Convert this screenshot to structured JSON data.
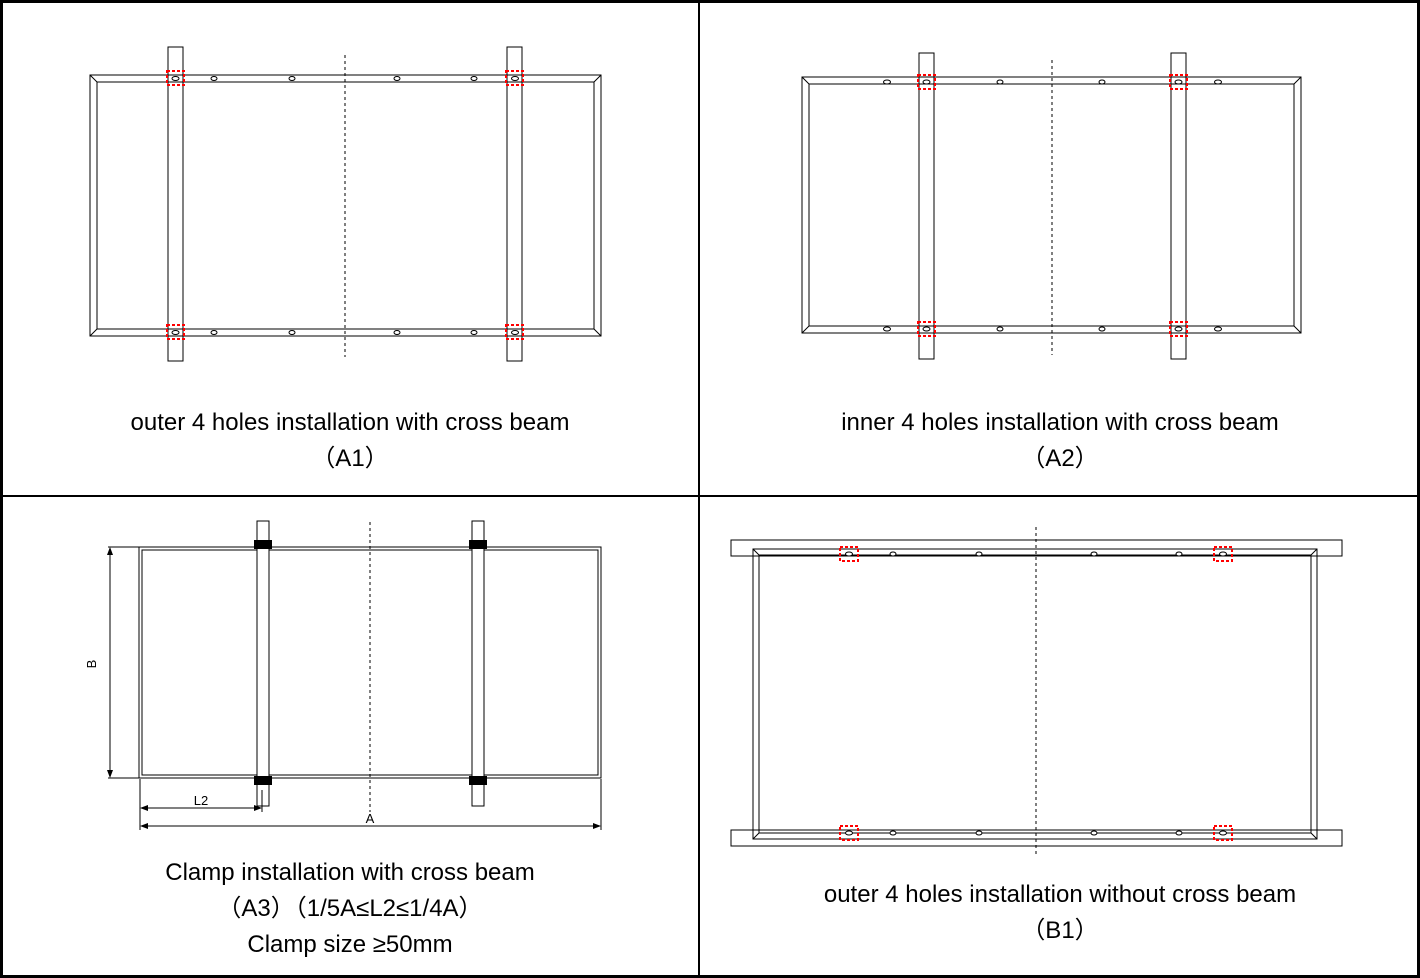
{
  "panels": [
    {
      "id": "a1",
      "caption": "outer 4 holes installation with cross beam",
      "label": "（A1）"
    },
    {
      "id": "a2",
      "caption": "inner 4 holes installation with cross beam",
      "label": "（A2）"
    },
    {
      "id": "a3",
      "caption": "Clamp installation with cross beam",
      "label": "（A3）（1/5A≤L2≤1/4A）",
      "note": "Clamp size ≥50mm",
      "dimensions": {
        "height": "B",
        "width": "A",
        "offset": "L2"
      }
    },
    {
      "id": "b1",
      "caption": "outer 4 holes installation without cross beam",
      "label": "（B1）"
    }
  ],
  "colors": {
    "line": "#000000",
    "highlight": "#ff0000"
  }
}
